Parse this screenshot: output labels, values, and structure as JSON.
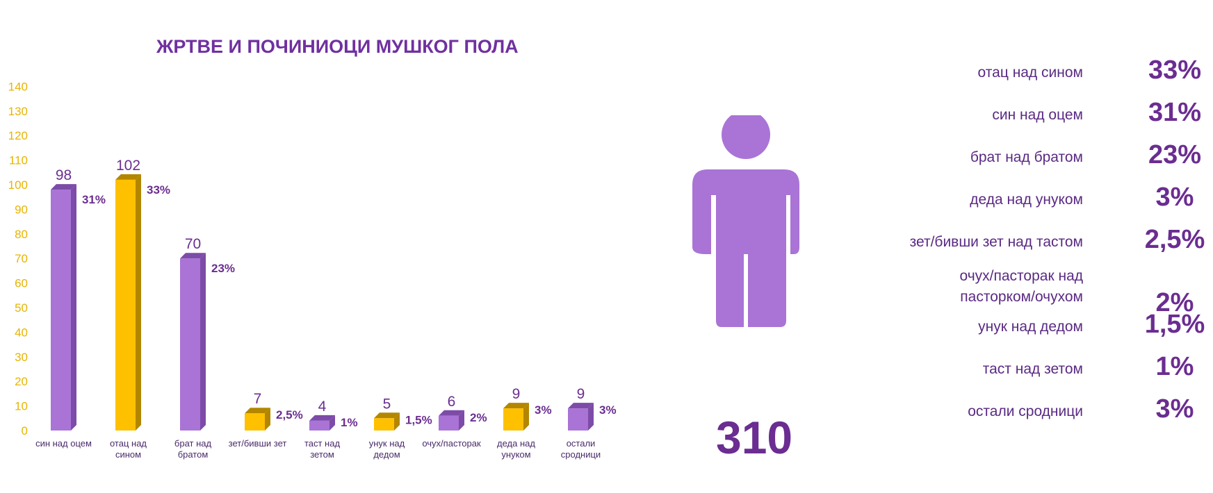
{
  "chart_data": {
    "type": "bar",
    "title": "ЖРТВЕ И ПОЧИНИОЦИ МУШКОГ ПОЛА",
    "ylim": [
      0,
      140
    ],
    "yticks": [
      "0",
      "10",
      "20",
      "30",
      "40",
      "50",
      "60",
      "70",
      "80",
      "90",
      "100",
      "110",
      "120",
      "130",
      "140"
    ],
    "categories": [
      [
        "син над оцем"
      ],
      [
        "отац над",
        "сином"
      ],
      [
        "брат над",
        "братом"
      ],
      [
        "зет/бивши зет"
      ],
      [
        "таст над",
        "зетом"
      ],
      [
        "унук над",
        "дедом"
      ],
      [
        "очух/пасторак"
      ],
      [
        "деда над",
        "унуком"
      ],
      [
        "остали",
        "сродници"
      ]
    ],
    "values": [
      98,
      102,
      70,
      7,
      4,
      5,
      6,
      9,
      9
    ],
    "value_labels": [
      "98",
      "102",
      "70",
      "7",
      "4",
      "5",
      "6",
      "9",
      "9"
    ],
    "percent_labels": [
      "31%",
      "33%",
      "23%",
      "2,5%",
      "1%",
      "1,5%",
      "2%",
      "3%",
      "3%"
    ],
    "bar_colors": [
      "#a974d6",
      "#ffc000",
      "#a974d6",
      "#ffc000",
      "#a974d6",
      "#ffc000",
      "#a974d6",
      "#ffc000",
      "#a974d6"
    ],
    "grid": false,
    "colors": {
      "purple": "#a974d6",
      "purple_side": "#7d4ba8",
      "gold": "#ffc000",
      "gold_side": "#b38600",
      "tick_text": "#e8b400",
      "label_purple": "#6b2d91"
    }
  },
  "summary": {
    "figure_icon": "person-icon",
    "figure_color": "#a974d6",
    "total": "310",
    "legend": [
      {
        "label": [
          "отац над сином"
        ],
        "value": "33%"
      },
      {
        "label": [
          "син над оцем"
        ],
        "value": "31%"
      },
      {
        "label": [
          "брат над братом"
        ],
        "value": "23%"
      },
      {
        "label": [
          "деда над унуком"
        ],
        "value": "3%"
      },
      {
        "label": [
          "зет/бивши зет над тастом"
        ],
        "value": "2,5%"
      },
      {
        "label": [
          "очух/пасторак над",
          "пасторком/очухом"
        ],
        "value": "2%"
      },
      {
        "label": [
          "унук над дедом"
        ],
        "value": "1,5%"
      },
      {
        "label": [
          "таст над зетом"
        ],
        "value": "1%"
      },
      {
        "label": [
          "остали сродници"
        ],
        "value": "3%"
      }
    ]
  }
}
